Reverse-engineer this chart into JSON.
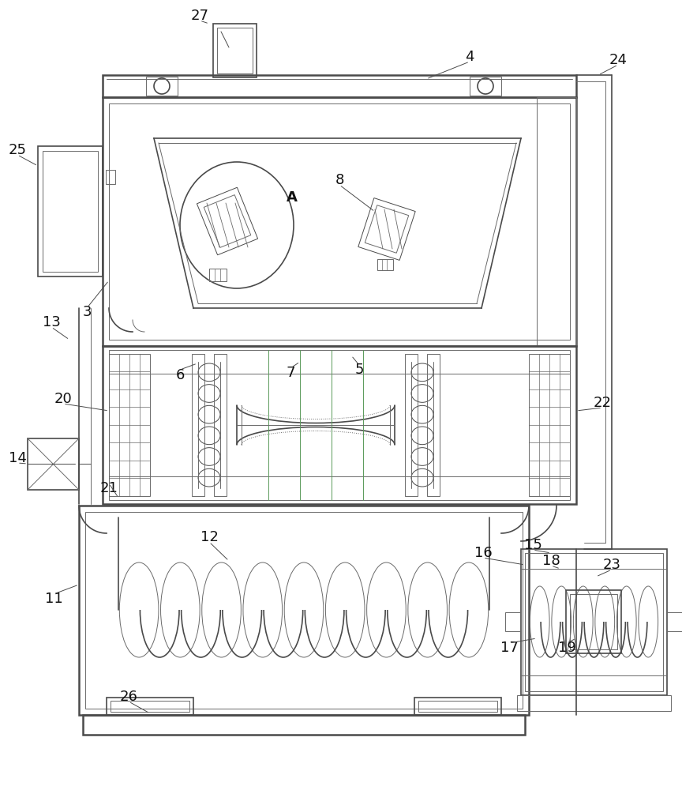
{
  "bg_color": "#ffffff",
  "lc": "#4a4a4a",
  "lc_thin": "#6a6a6a",
  "green": "#5a9a5a",
  "label_color": "#111111",
  "fig_width": 8.64,
  "fig_height": 10.0,
  "dpi": 100
}
